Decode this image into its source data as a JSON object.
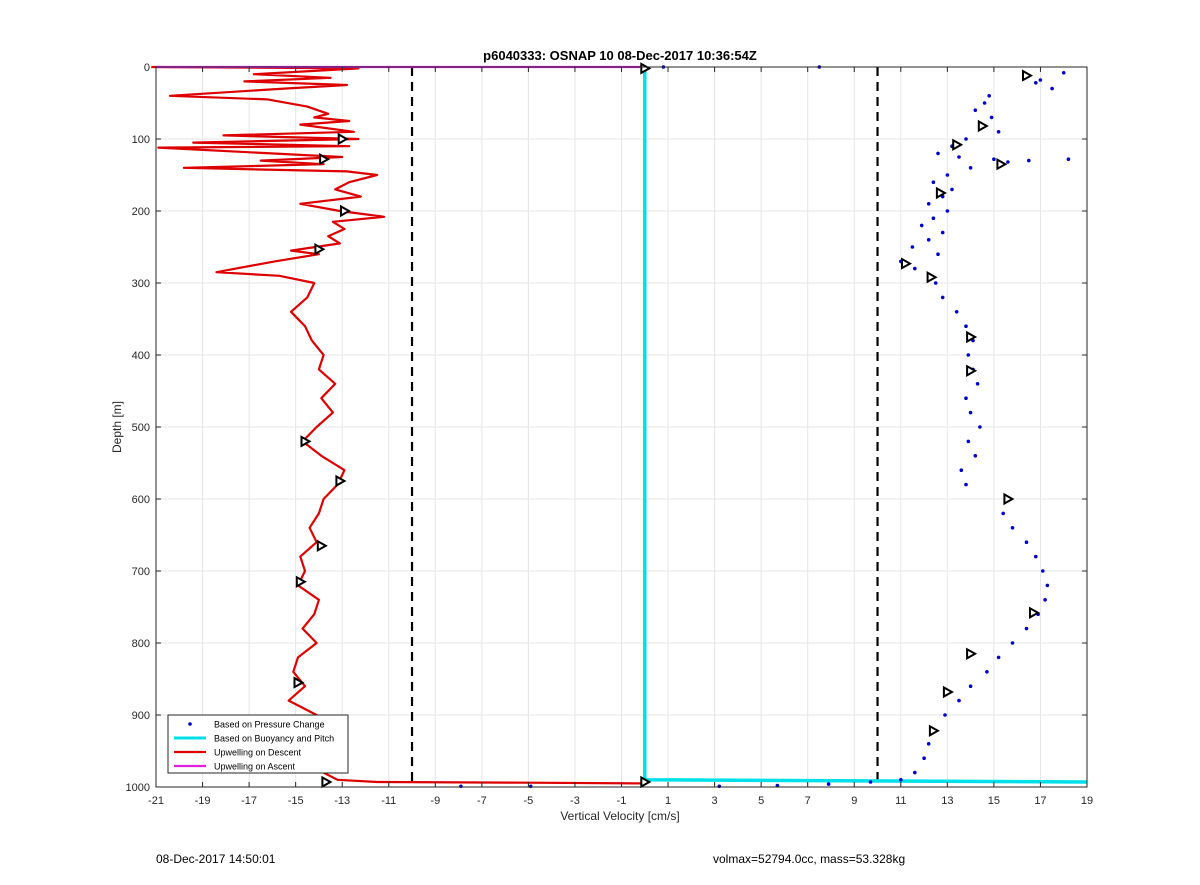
{
  "chart_data": {
    "type": "scatter",
    "title": "p6040333: OSNAP 10 08-Dec-2017 10:36:54Z",
    "xlabel": "Vertical Velocity [cm/s]",
    "ylabel": "Depth [m]",
    "xlim": [
      -21,
      19
    ],
    "ylim": [
      0,
      1000
    ],
    "y_reversed": true,
    "grid": true,
    "legend_position": "bottom-left",
    "xticks": [
      -21,
      -19,
      -17,
      -15,
      -13,
      -11,
      -9,
      -7,
      -5,
      -3,
      -1,
      1,
      3,
      5,
      7,
      9,
      11,
      13,
      15,
      17,
      19
    ],
    "xtick_labels": [
      "-21",
      "-19",
      "-17",
      "-15",
      "-13",
      "-11",
      "-9",
      "-7",
      "-5",
      "-3",
      "-1",
      "1",
      "3",
      "5",
      "7",
      "9",
      "11",
      "13",
      "15",
      "17",
      "19"
    ],
    "yticks": [
      0,
      100,
      200,
      300,
      400,
      500,
      600,
      700,
      800,
      900,
      1000
    ],
    "ytick_labels": [
      "0",
      "100",
      "200",
      "300",
      "400",
      "500",
      "600",
      "700",
      "800",
      "900",
      "1000"
    ],
    "reference_lines_x": [
      -10,
      10
    ],
    "series": [
      {
        "name": "Based on Pressure Change",
        "style": "dots",
        "color": "#0000cc",
        "points": [
          [
            16.4,
            10
          ],
          [
            17.0,
            18
          ],
          [
            18.0,
            8
          ],
          [
            16.8,
            22
          ],
          [
            17.5,
            30
          ],
          [
            14.8,
            40
          ],
          [
            14.6,
            50
          ],
          [
            14.2,
            60
          ],
          [
            14.9,
            70
          ],
          [
            14.4,
            80
          ],
          [
            15.2,
            90
          ],
          [
            13.8,
            100
          ],
          [
            13.2,
            110
          ],
          [
            12.6,
            120
          ],
          [
            13.5,
            125
          ],
          [
            15.0,
            128
          ],
          [
            15.6,
            132
          ],
          [
            16.5,
            130
          ],
          [
            18.2,
            128
          ],
          [
            14.0,
            140
          ],
          [
            13.0,
            150
          ],
          [
            12.4,
            160
          ],
          [
            13.2,
            170
          ],
          [
            12.8,
            180
          ],
          [
            12.2,
            190
          ],
          [
            13.0,
            200
          ],
          [
            12.4,
            210
          ],
          [
            11.9,
            220
          ],
          [
            12.8,
            230
          ],
          [
            12.2,
            240
          ],
          [
            11.5,
            250
          ],
          [
            12.6,
            260
          ],
          [
            11.0,
            270
          ],
          [
            11.6,
            280
          ],
          [
            12.2,
            290
          ],
          [
            12.5,
            300
          ],
          [
            12.8,
            320
          ],
          [
            13.4,
            340
          ],
          [
            13.8,
            360
          ],
          [
            14.1,
            380
          ],
          [
            13.9,
            400
          ],
          [
            14.1,
            420
          ],
          [
            14.3,
            440
          ],
          [
            13.8,
            460
          ],
          [
            14.0,
            480
          ],
          [
            14.4,
            500
          ],
          [
            13.9,
            520
          ],
          [
            14.2,
            540
          ],
          [
            13.6,
            560
          ],
          [
            13.8,
            580
          ],
          [
            15.7,
            600
          ],
          [
            15.4,
            620
          ],
          [
            15.8,
            640
          ],
          [
            16.4,
            660
          ],
          [
            16.8,
            680
          ],
          [
            17.1,
            700
          ],
          [
            17.3,
            720
          ],
          [
            17.2,
            740
          ],
          [
            16.9,
            760
          ],
          [
            16.4,
            780
          ],
          [
            15.8,
            800
          ],
          [
            15.2,
            820
          ],
          [
            14.7,
            840
          ],
          [
            14.0,
            860
          ],
          [
            13.5,
            880
          ],
          [
            12.9,
            900
          ],
          [
            12.4,
            920
          ],
          [
            12.2,
            940
          ],
          [
            12.0,
            960
          ],
          [
            11.6,
            980
          ],
          [
            11.0,
            990
          ],
          [
            9.7,
            993
          ],
          [
            7.9,
            996
          ],
          [
            5.7,
            998
          ],
          [
            3.2,
            999
          ],
          [
            7.5,
            0
          ],
          [
            0.8,
            0
          ],
          [
            -7.9,
            999
          ],
          [
            -4.9,
            999
          ]
        ]
      },
      {
        "name": "Based on Buoyancy and Pitch",
        "style": "line",
        "color": "#00e0e8",
        "points": [
          [
            0,
            0
          ],
          [
            0,
            990
          ],
          [
            19,
            993
          ]
        ]
      },
      {
        "name": "Upwelling on Descent",
        "style": "line",
        "color": "#dd0000",
        "points": [
          [
            -21.2,
            0
          ],
          [
            -12.3,
            2
          ],
          [
            -14.0,
            5
          ],
          [
            -16.8,
            10
          ],
          [
            -13.5,
            15
          ],
          [
            -17.2,
            20
          ],
          [
            -12.8,
            25
          ],
          [
            -15.5,
            30
          ],
          [
            -20.4,
            40
          ],
          [
            -16.2,
            45
          ],
          [
            -14.5,
            55
          ],
          [
            -13.6,
            65
          ],
          [
            -14.2,
            70
          ],
          [
            -12.7,
            75
          ],
          [
            -14.8,
            80
          ],
          [
            -12.5,
            90
          ],
          [
            -18.1,
            95
          ],
          [
            -12.3,
            100
          ],
          [
            -19.4,
            105
          ],
          [
            -12.7,
            110
          ],
          [
            -20.9,
            112
          ],
          [
            -13.0,
            125
          ],
          [
            -16.5,
            130
          ],
          [
            -13.8,
            135
          ],
          [
            -19.8,
            140
          ],
          [
            -12.8,
            145
          ],
          [
            -11.5,
            150
          ],
          [
            -12.7,
            160
          ],
          [
            -13.3,
            170
          ],
          [
            -12.2,
            180
          ],
          [
            -14.8,
            190
          ],
          [
            -13.1,
            200
          ],
          [
            -11.2,
            208
          ],
          [
            -13.4,
            215
          ],
          [
            -12.9,
            225
          ],
          [
            -13.6,
            235
          ],
          [
            -13.1,
            245
          ],
          [
            -15.2,
            255
          ],
          [
            -14.0,
            260
          ],
          [
            -15.9,
            270
          ],
          [
            -18.4,
            285
          ],
          [
            -15.7,
            290
          ],
          [
            -14.2,
            300
          ],
          [
            -14.5,
            320
          ],
          [
            -15.2,
            340
          ],
          [
            -14.6,
            360
          ],
          [
            -14.3,
            380
          ],
          [
            -13.8,
            400
          ],
          [
            -14.0,
            420
          ],
          [
            -13.3,
            440
          ],
          [
            -13.9,
            460
          ],
          [
            -13.4,
            480
          ],
          [
            -14.1,
            500
          ],
          [
            -14.7,
            520
          ],
          [
            -13.9,
            540
          ],
          [
            -12.9,
            560
          ],
          [
            -13.2,
            580
          ],
          [
            -13.8,
            600
          ],
          [
            -14.0,
            620
          ],
          [
            -14.4,
            640
          ],
          [
            -14.1,
            660
          ],
          [
            -14.8,
            680
          ],
          [
            -14.6,
            700
          ],
          [
            -14.9,
            720
          ],
          [
            -14.0,
            740
          ],
          [
            -14.2,
            760
          ],
          [
            -14.7,
            780
          ],
          [
            -14.1,
            800
          ],
          [
            -14.9,
            820
          ],
          [
            -15.1,
            840
          ],
          [
            -14.6,
            860
          ],
          [
            -15.3,
            880
          ],
          [
            -14.1,
            900
          ],
          [
            -13.7,
            920
          ],
          [
            -14.0,
            940
          ],
          [
            -13.5,
            960
          ],
          [
            -13.8,
            980
          ],
          [
            -13.2,
            990
          ],
          [
            -11.5,
            993
          ],
          [
            -5.0,
            994
          ],
          [
            0,
            995
          ]
        ]
      },
      {
        "name": "Upwelling on Ascent",
        "style": "line",
        "color": "#e020e0",
        "points": [
          [
            -21,
            0
          ],
          [
            0,
            0
          ]
        ]
      }
    ],
    "markers": {
      "style": "triangle",
      "color": "#000000",
      "points": [
        [
          0,
          2
        ],
        [
          0,
          993
        ],
        [
          -13.7,
          993
        ],
        [
          -13.0,
          100
        ],
        [
          -13.8,
          128
        ],
        [
          -12.9,
          200
        ],
        [
          -14.0,
          253
        ],
        [
          -14.6,
          520
        ],
        [
          -13.1,
          575
        ],
        [
          -13.9,
          665
        ],
        [
          -14.8,
          715
        ],
        [
          -14.9,
          855
        ],
        [
          16.4,
          12
        ],
        [
          14.5,
          82
        ],
        [
          13.4,
          108
        ],
        [
          15.3,
          135
        ],
        [
          12.7,
          175
        ],
        [
          11.2,
          273
        ],
        [
          12.3,
          292
        ],
        [
          14.0,
          375
        ],
        [
          14.0,
          422
        ],
        [
          15.6,
          600
        ],
        [
          16.7,
          758
        ],
        [
          14.0,
          815
        ],
        [
          13.0,
          868
        ],
        [
          12.4,
          922
        ]
      ]
    }
  },
  "footer": {
    "left": "08-Dec-2017 14:50:01",
    "right": "volmax=52794.0cc, mass=53.328kg"
  }
}
